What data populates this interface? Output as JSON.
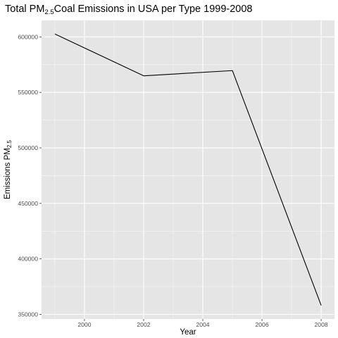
{
  "chart_data": {
    "type": "line",
    "title": {
      "prefix": "Total PM",
      "subscript": "2.5",
      "suffix": "Coal Emissions in USA per Type 1999-2008"
    },
    "xlabel": "Year",
    "ylabel": {
      "prefix": "Emissions PM",
      "subscript": "2.5"
    },
    "x": [
      1999,
      2002,
      2005,
      2008
    ],
    "series": [
      {
        "values": [
          602624,
          564940,
          569655,
          358084
        ]
      }
    ],
    "xlim": [
      1998.55,
      2008.45
    ],
    "ylim": [
      345850,
      614850
    ],
    "xticks": [
      2000,
      2002,
      2004,
      2006,
      2008
    ],
    "xtick_labels": [
      "2000",
      "2002",
      "2004",
      "2006",
      "2008"
    ],
    "yticks": [
      350000,
      400000,
      450000,
      500000,
      550000,
      600000
    ],
    "ytick_labels": [
      "350000",
      "400000",
      "450000",
      "500000",
      "550000",
      "600000"
    ],
    "grid": true,
    "colors": {
      "panel_background": "#E5E5E5",
      "grid_major": "#FFFFFF",
      "line": "#000000",
      "tick_label": "#4D4D4D"
    }
  }
}
